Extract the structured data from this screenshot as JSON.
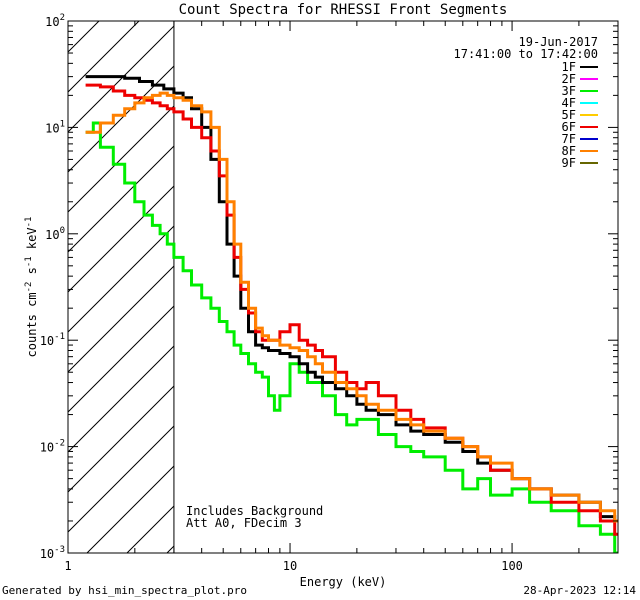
{
  "chart_data": {
    "type": "line",
    "title": "Count Spectra for RHESSI Front Segments",
    "xlabel": "Energy (keV)",
    "ylabel_parts": [
      "counts cm",
      "-2",
      " s",
      "-1",
      " keV",
      "-1"
    ],
    "xscale": "log",
    "yscale": "log",
    "xlim": [
      1,
      300
    ],
    "ylim": [
      0.001,
      100
    ],
    "x_ticks": [
      {
        "value": 1,
        "label": "1"
      },
      {
        "value": 10,
        "label": "10"
      },
      {
        "value": 100,
        "label": "100"
      }
    ],
    "y_ticks": [
      {
        "value": 0.001,
        "base": "10",
        "exp": "-3"
      },
      {
        "value": 0.01,
        "base": "10",
        "exp": "-2"
      },
      {
        "value": 0.1,
        "base": "10",
        "exp": "-1"
      },
      {
        "value": 1,
        "base": "10",
        "exp": "0"
      },
      {
        "value": 10,
        "base": "10",
        "exp": "1"
      },
      {
        "value": 100,
        "base": "10",
        "exp": "2"
      }
    ],
    "date_label": "19-Jun-2017",
    "time_label": "17:41:00 to 17:42:00",
    "hatched_region": [
      1,
      3
    ],
    "annotations": [
      "Includes Background",
      "Att A0, FDecim 3"
    ],
    "legend": [
      {
        "name": "1F",
        "color": "#000000"
      },
      {
        "name": "2F",
        "color": "#ff00ff"
      },
      {
        "name": "3F",
        "color": "#00ee00"
      },
      {
        "name": "4F",
        "color": "#00ffff"
      },
      {
        "name": "5F",
        "color": "#ffcc00"
      },
      {
        "name": "6F",
        "color": "#ee0000"
      },
      {
        "name": "7F",
        "color": "#0000cc"
      },
      {
        "name": "8F",
        "color": "#ff8000"
      },
      {
        "name": "9F",
        "color": "#666600"
      }
    ],
    "series": [
      {
        "name": "3F",
        "color": "#00ee00",
        "x": [
          1.2,
          1.3,
          1.4,
          1.6,
          1.8,
          2.0,
          2.2,
          2.4,
          2.6,
          2.8,
          3.0,
          3.3,
          3.6,
          4.0,
          4.4,
          4.8,
          5.2,
          5.6,
          6.0,
          6.5,
          7.0,
          7.5,
          8.0,
          8.5,
          9.0,
          10.0,
          11.0,
          12.0,
          14.0,
          16.0,
          18.0,
          20.0,
          25.0,
          30.0,
          35.0,
          40.0,
          50.0,
          60.0,
          70.0,
          80.0,
          100.0,
          120.0,
          150.0,
          200.0,
          250.0,
          290.0
        ],
        "y": [
          9.0,
          11.0,
          6.5,
          4.5,
          3.0,
          2.0,
          1.5,
          1.2,
          1.0,
          0.8,
          0.6,
          0.45,
          0.33,
          0.25,
          0.2,
          0.15,
          0.12,
          0.09,
          0.075,
          0.06,
          0.05,
          0.045,
          0.03,
          0.022,
          0.03,
          0.06,
          0.05,
          0.04,
          0.03,
          0.02,
          0.016,
          0.018,
          0.013,
          0.01,
          0.009,
          0.008,
          0.006,
          0.004,
          0.005,
          0.0035,
          0.004,
          0.003,
          0.0025,
          0.0018,
          0.0015,
          0.001
        ]
      },
      {
        "name": "1F",
        "color": "#000000",
        "x": [
          1.2,
          1.5,
          1.8,
          2.1,
          2.4,
          2.7,
          3.0,
          3.3,
          3.6,
          4.0,
          4.4,
          4.8,
          5.2,
          5.6,
          6.0,
          6.5,
          7.0,
          7.5,
          8.0,
          9.0,
          10.0,
          11.0,
          12.0,
          13.0,
          14.0,
          16.0,
          18.0,
          20.0,
          22.0,
          25.0,
          30.0,
          35.0,
          40.0,
          50.0,
          60.0,
          70.0,
          80.0,
          100.0,
          120.0,
          150.0,
          200.0,
          250.0,
          290.0
        ],
        "y": [
          30.0,
          30.0,
          29.0,
          27.0,
          25.0,
          23.0,
          21.0,
          19.0,
          15.0,
          10.0,
          5.0,
          2.0,
          0.8,
          0.4,
          0.2,
          0.12,
          0.09,
          0.085,
          0.08,
          0.075,
          0.07,
          0.06,
          0.05,
          0.045,
          0.04,
          0.035,
          0.03,
          0.025,
          0.022,
          0.02,
          0.016,
          0.014,
          0.013,
          0.011,
          0.009,
          0.007,
          0.006,
          0.005,
          0.004,
          0.0035,
          0.003,
          0.0022,
          0.002
        ]
      },
      {
        "name": "6F",
        "color": "#ee0000",
        "x": [
          1.2,
          1.4,
          1.6,
          1.8,
          2.0,
          2.2,
          2.4,
          2.6,
          2.8,
          3.0,
          3.3,
          3.6,
          4.0,
          4.4,
          4.8,
          5.2,
          5.6,
          6.0,
          6.5,
          7.0,
          7.5,
          8.0,
          9.0,
          10.0,
          11.0,
          12.0,
          13.0,
          14.0,
          16.0,
          18.0,
          20.0,
          22.0,
          25.0,
          30.0,
          35.0,
          40.0,
          50.0,
          60.0,
          70.0,
          80.0,
          100.0,
          120.0,
          150.0,
          200.0,
          250.0,
          290.0
        ],
        "y": [
          25.0,
          24.0,
          22.0,
          20.0,
          19.0,
          18.0,
          17.0,
          16.0,
          15.0,
          14.0,
          12.0,
          10.0,
          8.0,
          6.0,
          3.5,
          1.5,
          0.6,
          0.3,
          0.18,
          0.12,
          0.1,
          0.1,
          0.12,
          0.14,
          0.1,
          0.09,
          0.08,
          0.07,
          0.05,
          0.04,
          0.035,
          0.04,
          0.03,
          0.022,
          0.018,
          0.015,
          0.012,
          0.01,
          0.008,
          0.006,
          0.005,
          0.004,
          0.003,
          0.0025,
          0.002,
          0.0015
        ]
      },
      {
        "name": "8F",
        "color": "#ff8000",
        "x": [
          1.2,
          1.4,
          1.6,
          1.8,
          2.0,
          2.2,
          2.4,
          2.6,
          2.8,
          3.0,
          3.3,
          3.6,
          4.0,
          4.4,
          4.8,
          5.2,
          5.6,
          6.0,
          6.5,
          7.0,
          7.5,
          8.0,
          9.0,
          10.0,
          11.0,
          12.0,
          13.0,
          14.0,
          16.0,
          18.0,
          20.0,
          22.0,
          25.0,
          30.0,
          35.0,
          40.0,
          50.0,
          60.0,
          70.0,
          80.0,
          100.0,
          120.0,
          150.0,
          200.0,
          250.0,
          290.0
        ],
        "y": [
          9.0,
          11.0,
          13.0,
          15.0,
          17.0,
          19.0,
          20.0,
          21.0,
          20.0,
          19.0,
          18.0,
          16.0,
          14.0,
          10.0,
          5.0,
          2.0,
          0.8,
          0.35,
          0.2,
          0.13,
          0.11,
          0.1,
          0.09,
          0.085,
          0.08,
          0.07,
          0.06,
          0.05,
          0.04,
          0.035,
          0.03,
          0.025,
          0.022,
          0.018,
          0.016,
          0.014,
          0.012,
          0.01,
          0.008,
          0.007,
          0.005,
          0.004,
          0.0035,
          0.003,
          0.0025,
          0.002
        ]
      }
    ]
  },
  "footer": {
    "generated": "Generated by hsi_min_spectra_plot.pro",
    "date": "28-Apr-2023 12:14"
  }
}
